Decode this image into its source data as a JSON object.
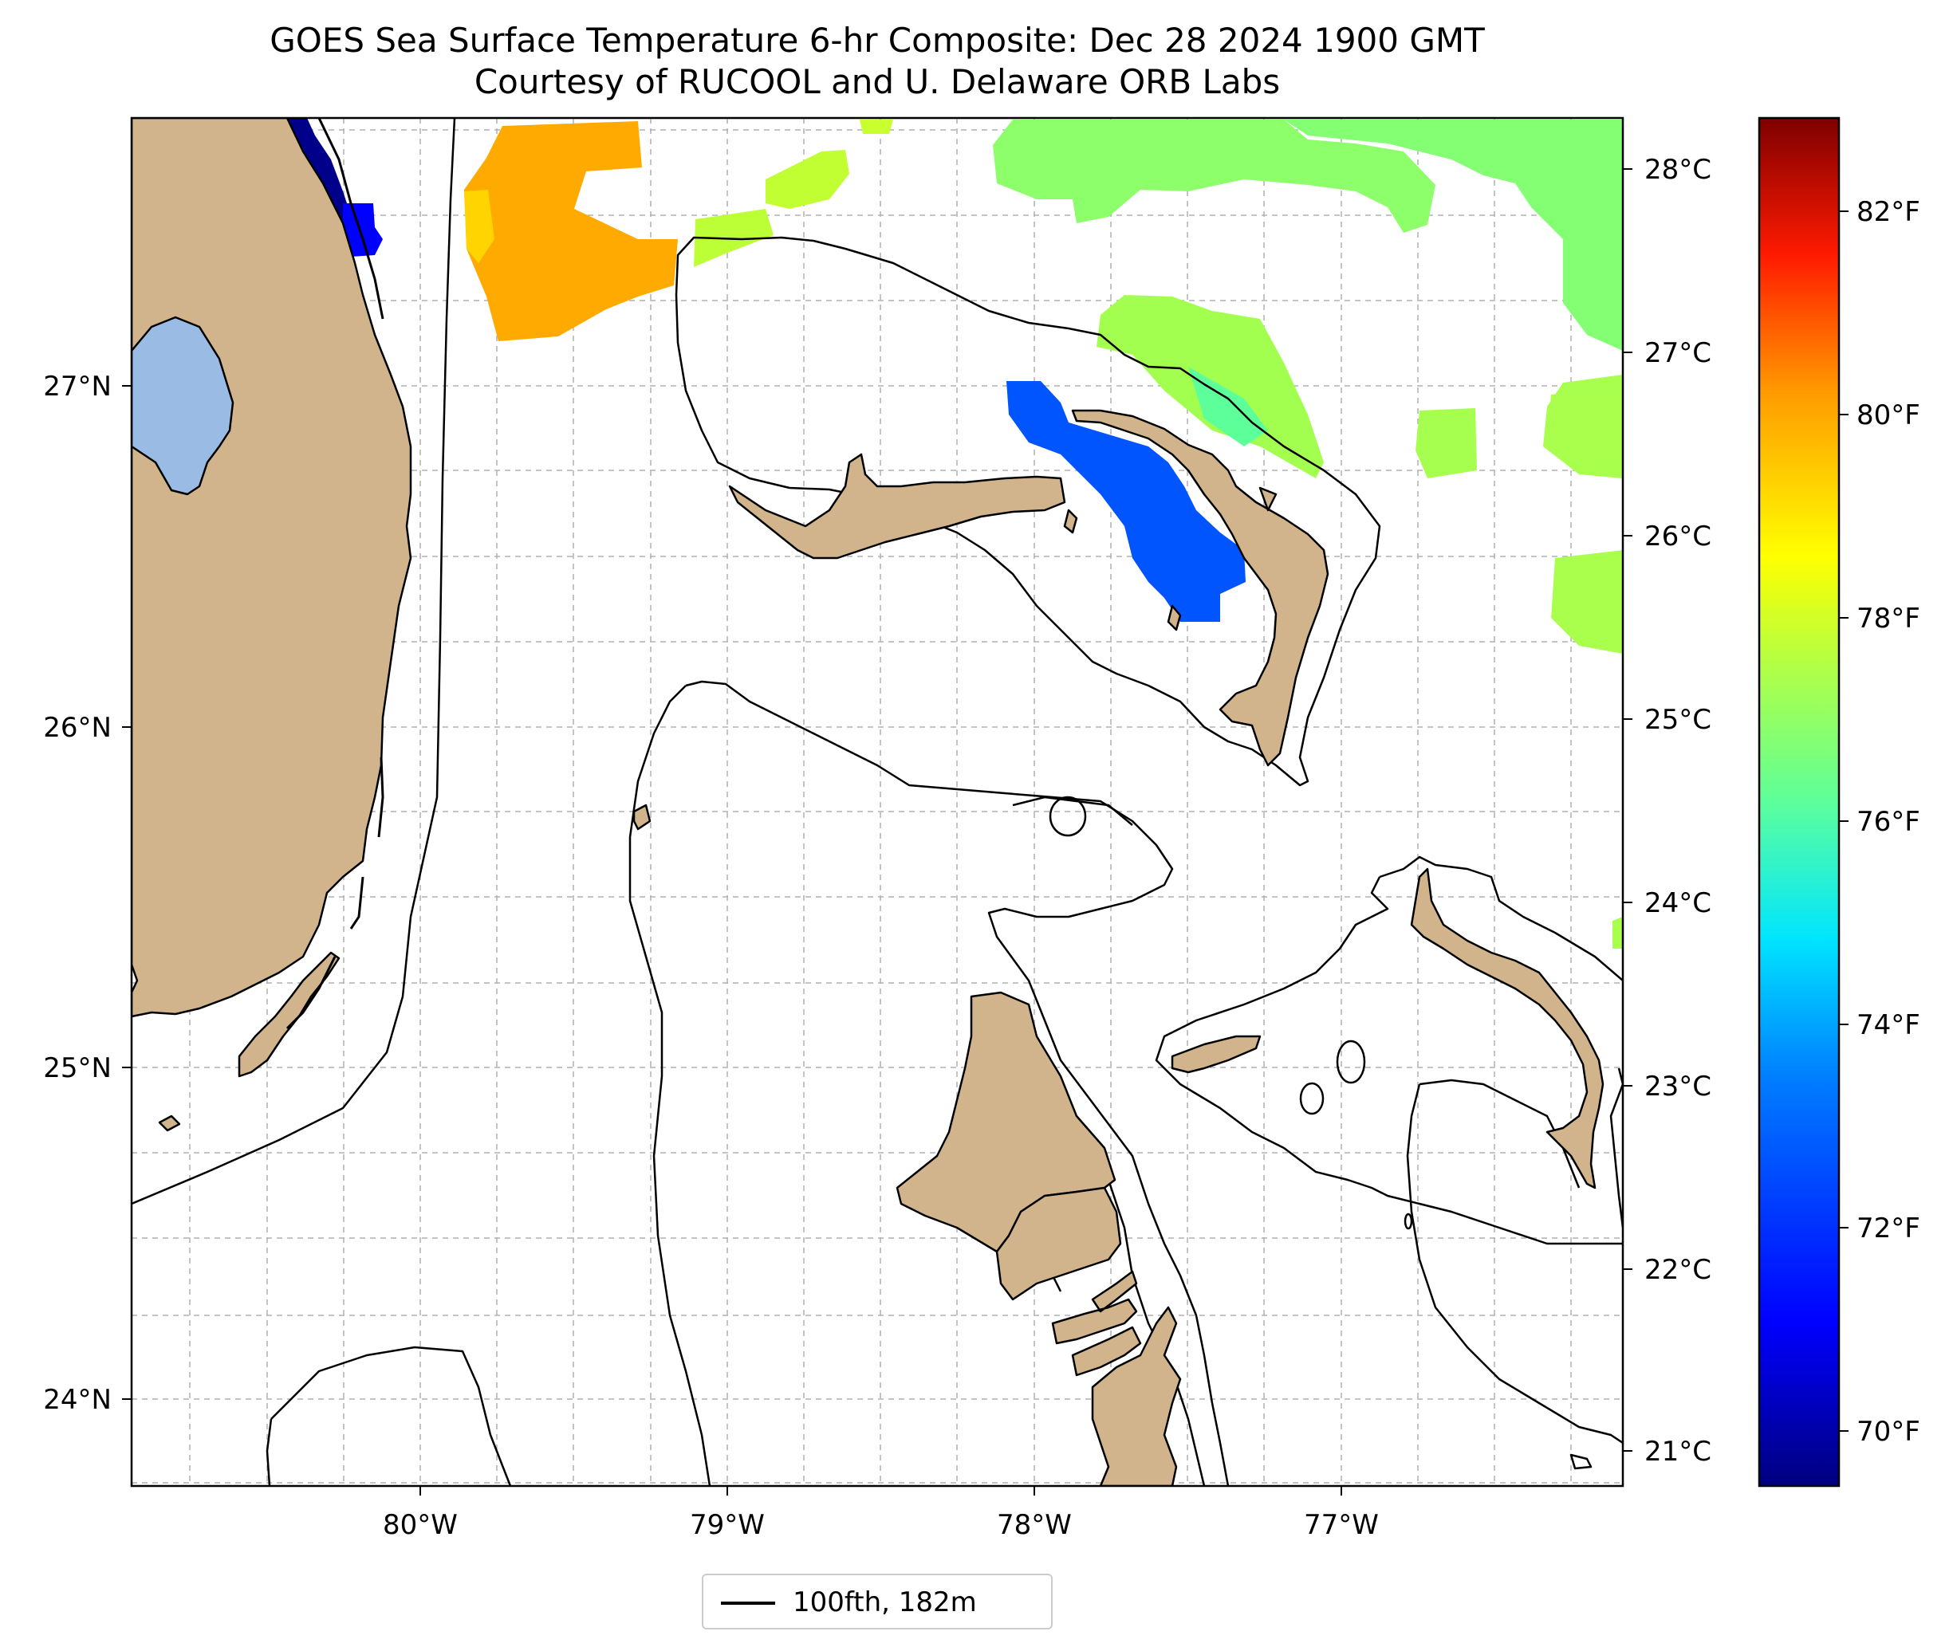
{
  "title": "GOES Sea Surface Temperature 6-hr Composite: Dec 28 2024 1900 GMT",
  "subtitle": "Courtesy of RUCOOL and U. Delaware ORB Labs",
  "map": {
    "lon_ticks": [
      "80°W",
      "79°W",
      "78°W",
      "77°W"
    ],
    "lat_ticks": [
      "27°N",
      "26°N",
      "25°N",
      "24°N"
    ]
  },
  "colorbar": {
    "celsius_ticks": [
      "28°C",
      "27°C",
      "26°C",
      "25°C",
      "24°C",
      "23°C",
      "22°C",
      "21°C"
    ],
    "fahrenheit_ticks": [
      "82°F",
      "80°F",
      "78°F",
      "76°F",
      "74°F",
      "72°F",
      "70°F"
    ],
    "colors": [
      "#00007f",
      "#0000ff",
      "#007fff",
      "#00ffff",
      "#7fff7f",
      "#ffff00",
      "#ff7f00",
      "#ff0000",
      "#7f0000"
    ]
  },
  "legend": {
    "label": "100fth, 182m"
  },
  "colors": {
    "land": "#d2b48c",
    "lake": "#9abbe4",
    "sst_warm_orange": "#ffaa00",
    "sst_green": "#a3ff4f",
    "sst_blue": "#0055ff",
    "sst_navy": "#00008b"
  }
}
